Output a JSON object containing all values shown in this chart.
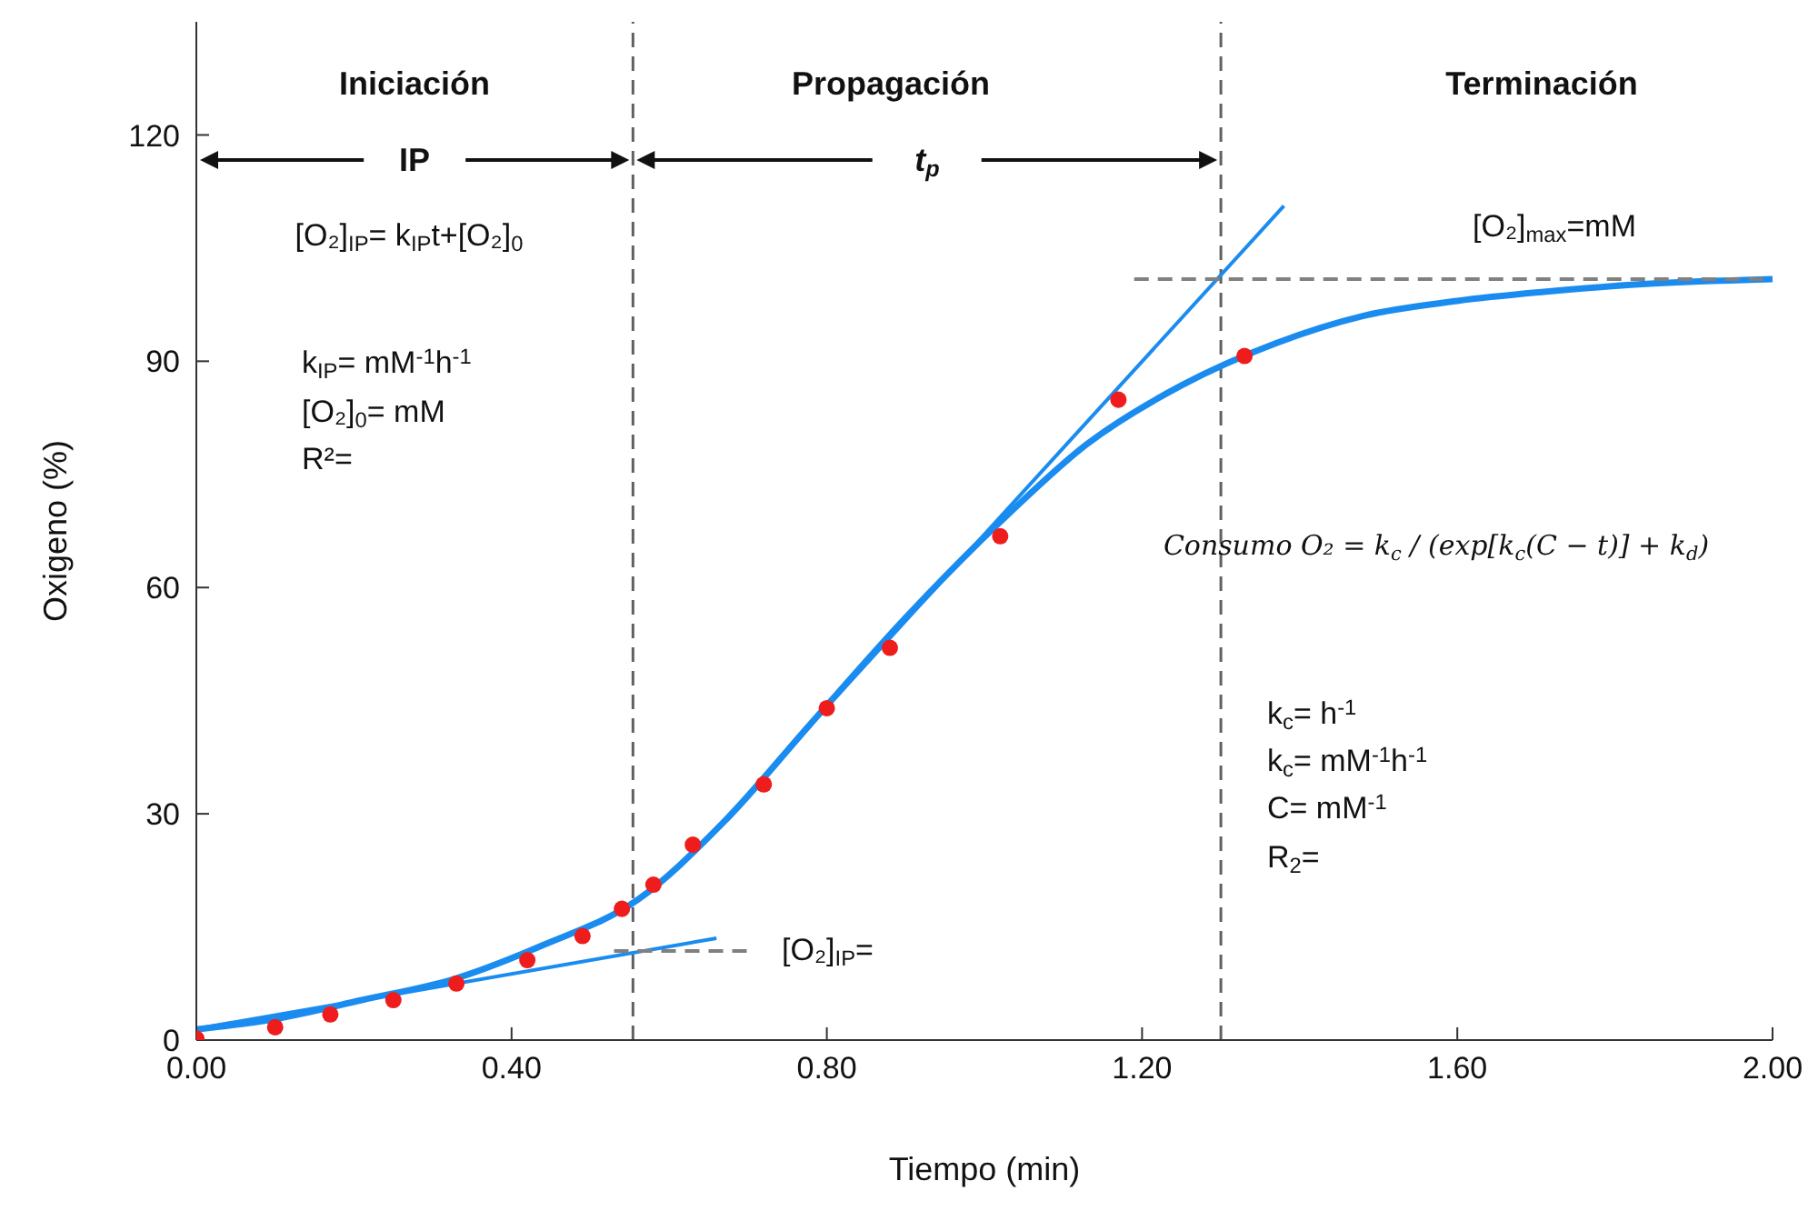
{
  "chart_data": {
    "type": "scatter",
    "xlabel": "Tiempo (min)",
    "ylabel": "Oxigeno (%)",
    "xlim": [
      0,
      2
    ],
    "xticks": [
      {
        "value": 0,
        "label": "0.00"
      },
      {
        "value": 0.4,
        "label": "0.40"
      },
      {
        "value": 0.8,
        "label": "0.80"
      },
      {
        "value": 1.2,
        "label": "1.20"
      },
      {
        "value": 1.6,
        "label": "1.60"
      },
      {
        "value": 2,
        "label": "2.00"
      }
    ],
    "ylim": [
      0,
      135
    ],
    "yticks": [
      0,
      30,
      60,
      90,
      120
    ],
    "grid": false,
    "legend": false,
    "series": [
      {
        "marker": "circle",
        "color": "#ee1c1c",
        "x": [
          0,
          0.1,
          0.17,
          0.25,
          0.33,
          0.42,
          0.49,
          0.54,
          0.58,
          0.63,
          0.72,
          0.8,
          0.88,
          1.02,
          1.17,
          1.33
        ],
        "values": [
          0.2,
          1.7,
          3.4,
          5.3,
          7.5,
          10.6,
          13.8,
          17.4,
          20.6,
          25.9,
          33.9,
          44,
          52,
          66.8,
          84.9,
          90.7
        ]
      },
      {
        "type": "line",
        "marker": "none",
        "line_style": "solid",
        "color": "#1a8cf0",
        "x": [
          0,
          0.1,
          0.21,
          0.33,
          0.44,
          0.56,
          0.67,
          0.78,
          0.9,
          1.02,
          1.13,
          1.25,
          1.37,
          1.48,
          1.6,
          1.71,
          1.83,
          2
        ],
        "values": [
          1.4,
          2.8,
          5.3,
          8.2,
          12.6,
          18.6,
          29,
          42,
          56,
          68.7,
          79,
          86.8,
          92.4,
          96,
          98,
          99.2,
          100.2,
          100.9
        ]
      },
      {
        "type": "line",
        "marker": "none",
        "line_style": "solid",
        "color": "#1a8cf0",
        "x": [
          0,
          0.66
        ],
        "values": [
          1.5,
          13.5
        ]
      },
      {
        "type": "line",
        "marker": "none",
        "line_style": "solid",
        "color": "#1a8cf0",
        "x": [
          0.75,
          1.38
        ],
        "values": [
          38.4,
          110.6
        ]
      },
      {
        "type": "line",
        "marker": "none",
        "line_style": "dashed",
        "color": "#808080",
        "x": [
          1.19,
          2
        ],
        "values": [
          100.9,
          100.9
        ]
      },
      {
        "type": "line",
        "marker": "none",
        "line_style": "dashed",
        "color": "#808080",
        "x": [
          0.53,
          0.7
        ],
        "values": [
          11.8,
          11.8
        ]
      }
    ],
    "ref_lines": [
      {
        "axis": "x",
        "value": 0.554,
        "color": "#606060",
        "line_style": "dashed"
      },
      {
        "axis": "x",
        "value": 1.3,
        "color": "#606060",
        "line_style": "dashed"
      }
    ],
    "annotations": [
      "Iniciación",
      "Propagación",
      "Terminación",
      "IP",
      "t$_{p}$",
      "[O₂]$_{IP}$= k$_{IP}$t+[O₂]$_{0}$",
      "k$_{IP}$= mM$^{-1}$h$^{-1}$",
      "[O₂]$_{0}$= mM",
      "R²=",
      "[O₂]$_{max}$=mM",
      "Consumo O₂ = k$_{c}$ / (exp[k$_{c}$(C − t)] + k$_{d}$)",
      "[O₂]$_{IP}$=",
      "k$_{c}$= h$^{-1}$",
      "k$_{c}$= mM$^{-1}$h$^{-1}$",
      "C= mM$^{-1}$",
      "R$_{2}$="
    ]
  }
}
